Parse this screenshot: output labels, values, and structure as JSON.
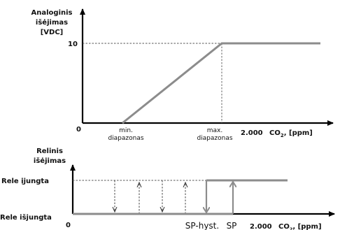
{
  "top_chart": {
    "y_title": [
      "Analoginis",
      "išėjimas",
      "[VDC]"
    ],
    "y_tick": "10",
    "x_origin": "0",
    "x_min_label": [
      "min.",
      "diapazonas"
    ],
    "x_max_label": [
      "max.",
      "diapazonas"
    ],
    "x_value": "2.000",
    "x_unit": {
      "prefix": "CO",
      "sub": "2",
      "suffix": ", [ppm]"
    }
  },
  "bottom_chart": {
    "y_title": [
      "Relinis",
      "išėjimas"
    ],
    "on_label": "Rele įjungta",
    "off_label": "Rele išjungta",
    "x_origin": "0",
    "sp_hyst": "SP-hyst.",
    "sp": "SP",
    "x_value": "2.000",
    "x_unit": {
      "prefix": "CO",
      "sub": "2",
      "suffix": ", [ppm]"
    }
  },
  "colors": {
    "curve": "#8c8c8c",
    "axis": "#000000"
  }
}
